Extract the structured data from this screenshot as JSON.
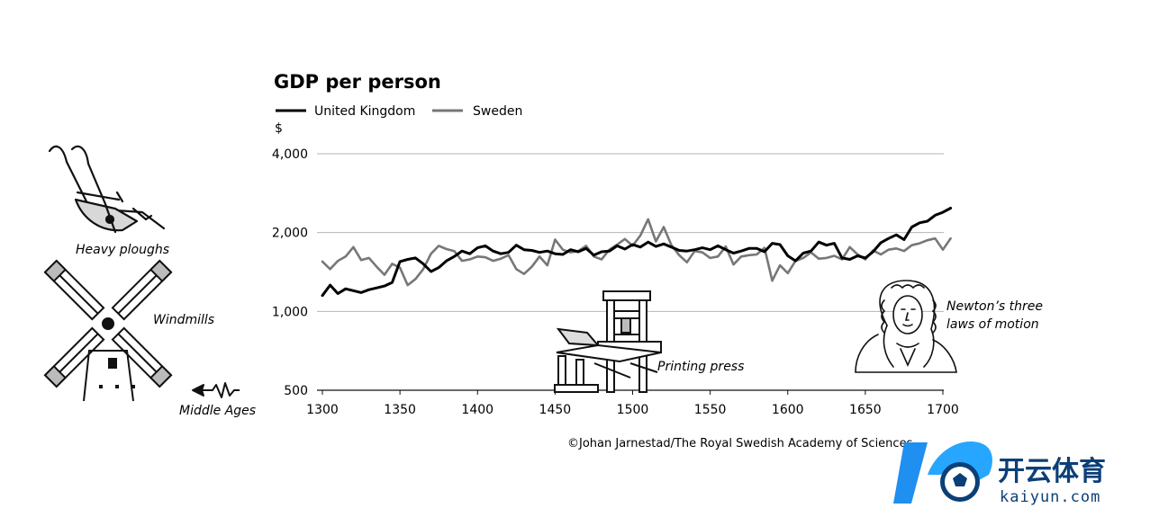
{
  "chart_data": {
    "type": "line",
    "title": "GDP per person",
    "ylabel": "$",
    "xlabel": "",
    "y_scale": "log",
    "ylim": [
      500,
      4000
    ],
    "xlim": [
      1300,
      1710
    ],
    "y_ticks": [
      {
        "value": 500,
        "label": "500"
      },
      {
        "value": 1000,
        "label": "1,000"
      },
      {
        "value": 2000,
        "label": "2,000"
      },
      {
        "value": 4000,
        "label": "4,000"
      }
    ],
    "x_ticks": [
      {
        "value": 1300,
        "label": "1300"
      },
      {
        "value": 1350,
        "label": "1350"
      },
      {
        "value": 1400,
        "label": "1400"
      },
      {
        "value": 1450,
        "label": "1450"
      },
      {
        "value": 1500,
        "label": "1500"
      },
      {
        "value": 1550,
        "label": "1550"
      },
      {
        "value": 1600,
        "label": "1600"
      },
      {
        "value": 1650,
        "label": "1650"
      },
      {
        "value": 1700,
        "label": "1700"
      }
    ],
    "series": [
      {
        "name": "United Kingdom",
        "color": "#000000",
        "x": [
          1300,
          1305,
          1310,
          1315,
          1320,
          1325,
          1330,
          1335,
          1340,
          1345,
          1350,
          1355,
          1360,
          1365,
          1370,
          1375,
          1380,
          1385,
          1390,
          1395,
          1400,
          1405,
          1410,
          1415,
          1420,
          1425,
          1430,
          1435,
          1440,
          1445,
          1450,
          1455,
          1460,
          1465,
          1470,
          1475,
          1480,
          1485,
          1490,
          1495,
          1500,
          1505,
          1510,
          1515,
          1520,
          1525,
          1530,
          1535,
          1540,
          1545,
          1550,
          1555,
          1560,
          1565,
          1570,
          1575,
          1580,
          1585,
          1590,
          1595,
          1600,
          1605,
          1610,
          1615,
          1620,
          1625,
          1630,
          1635,
          1640,
          1645,
          1650,
          1655,
          1660,
          1665,
          1670,
          1675,
          1680,
          1685,
          1690,
          1695,
          1700,
          1705
        ],
        "values": [
          1150,
          1260,
          1170,
          1220,
          1200,
          1180,
          1210,
          1230,
          1250,
          1290,
          1550,
          1580,
          1600,
          1520,
          1420,
          1470,
          1560,
          1620,
          1700,
          1660,
          1750,
          1780,
          1700,
          1660,
          1680,
          1790,
          1720,
          1710,
          1680,
          1700,
          1660,
          1650,
          1720,
          1690,
          1740,
          1640,
          1690,
          1700,
          1780,
          1730,
          1800,
          1760,
          1840,
          1770,
          1810,
          1760,
          1710,
          1700,
          1720,
          1750,
          1720,
          1780,
          1720,
          1670,
          1700,
          1740,
          1740,
          1690,
          1820,
          1800,
          1630,
          1560,
          1670,
          1700,
          1840,
          1790,
          1820,
          1600,
          1580,
          1630,
          1600,
          1690,
          1830,
          1900,
          1960,
          1880,
          2100,
          2180,
          2210,
          2330,
          2390,
          2480
        ]
      },
      {
        "name": "Sweden",
        "color": "#777777",
        "x": [
          1300,
          1305,
          1310,
          1315,
          1320,
          1325,
          1330,
          1335,
          1340,
          1345,
          1350,
          1355,
          1360,
          1365,
          1370,
          1375,
          1380,
          1385,
          1390,
          1395,
          1400,
          1405,
          1410,
          1415,
          1420,
          1425,
          1430,
          1435,
          1440,
          1445,
          1450,
          1455,
          1460,
          1465,
          1470,
          1475,
          1480,
          1485,
          1490,
          1495,
          1500,
          1505,
          1510,
          1515,
          1520,
          1525,
          1530,
          1535,
          1540,
          1545,
          1550,
          1555,
          1560,
          1565,
          1570,
          1575,
          1580,
          1585,
          1590,
          1595,
          1600,
          1605,
          1610,
          1615,
          1620,
          1625,
          1630,
          1635,
          1640,
          1645,
          1650,
          1655,
          1660,
          1665,
          1670,
          1675,
          1680,
          1685,
          1690,
          1695,
          1700,
          1705
        ],
        "values": [
          1550,
          1450,
          1560,
          1620,
          1760,
          1570,
          1600,
          1480,
          1380,
          1520,
          1470,
          1260,
          1330,
          1450,
          1660,
          1780,
          1730,
          1700,
          1560,
          1580,
          1620,
          1610,
          1560,
          1590,
          1640,
          1450,
          1390,
          1480,
          1620,
          1500,
          1880,
          1720,
          1680,
          1700,
          1780,
          1620,
          1580,
          1720,
          1800,
          1890,
          1780,
          1950,
          2250,
          1850,
          2100,
          1790,
          1640,
          1540,
          1700,
          1680,
          1600,
          1620,
          1770,
          1510,
          1620,
          1640,
          1650,
          1750,
          1310,
          1500,
          1400,
          1560,
          1600,
          1680,
          1590,
          1600,
          1630,
          1580,
          1760,
          1650,
          1580,
          1710,
          1650,
          1720,
          1740,
          1700,
          1790,
          1820,
          1870,
          1900,
          1720,
          1900
        ]
      }
    ],
    "annotations": [
      {
        "label": "Heavy ploughs",
        "icon": "plough-illustration"
      },
      {
        "label": "Windmills",
        "icon": "windmill-illustration"
      },
      {
        "label": "Middle Ages",
        "icon": "arrow-left-icon"
      },
      {
        "label": "Printing press",
        "icon": "printing-press-illustration"
      },
      {
        "label_lines": [
          "Newton’s three",
          "laws of motion"
        ],
        "icon": "newton-portrait-illustration"
      }
    ],
    "credit": "©Johan Jarnestad/The Royal Swedish Academy of Sciences"
  },
  "watermark": {
    "cn": "开云体育",
    "en": "kaiyun.com",
    "colors": {
      "primary": "#1f8ff0",
      "dark": "#0b3f77"
    }
  }
}
